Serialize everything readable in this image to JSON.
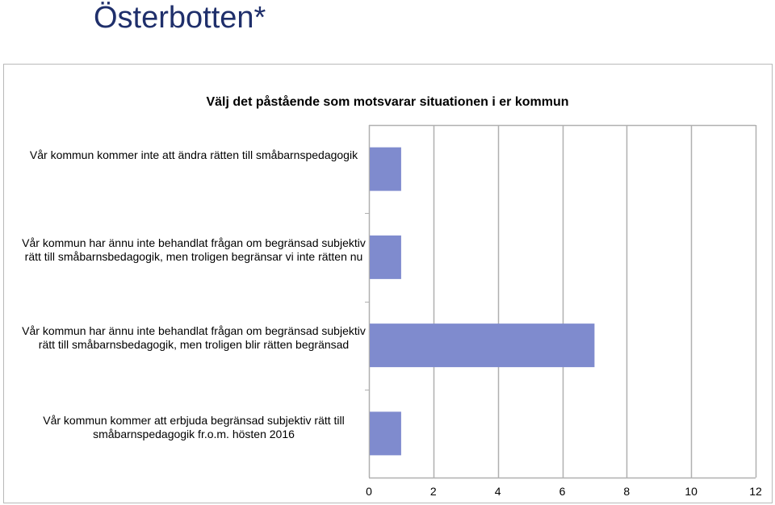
{
  "page": {
    "title": "Österbotten*"
  },
  "chart_data": {
    "type": "bar",
    "orientation": "horizontal",
    "title": "Välj det påstående som motsvarar situationen i er kommun",
    "categories": [
      "Vår kommun kommer inte att ändra rätten till småbarnspedagogik",
      "Vår kommun har ännu inte behandlat frågan om begränsad subjektiv rätt till småbarnsbedagogik, men troligen begränsar vi inte rätten nu",
      "Vår kommun har ännu inte behandlat frågan om begränsad subjektiv rätt till småbarnsbedagogik, men troligen blir rätten begränsad",
      "Vår kommun kommer att erbjuda begränsad subjektiv rätt till småbarnspedagogik fr.o.m. hösten 2016"
    ],
    "category_lines": [
      [
        "Vår kommun kommer inte att ändra rätten till småbarnspedagogik"
      ],
      [
        "Vår kommun har ännu inte behandlat frågan om begränsad subjektiv",
        "rätt till småbarnsbedagogik, men troligen begränsar vi inte rätten nu"
      ],
      [
        "Vår kommun har ännu inte behandlat frågan om begränsad subjektiv",
        "rätt till småbarnsbedagogik, men troligen blir rätten begränsad"
      ],
      [
        "Vår kommun kommer att erbjuda begränsad subjektiv rätt till",
        "småbarnspedagogik fr.o.m. hösten 2016"
      ]
    ],
    "values": [
      1,
      1,
      7,
      1
    ],
    "xlim": [
      0,
      12
    ],
    "xticks": [
      0,
      2,
      4,
      6,
      8,
      10,
      12
    ],
    "grid": true,
    "legend": "none",
    "bar_color": "#7f8bce"
  }
}
